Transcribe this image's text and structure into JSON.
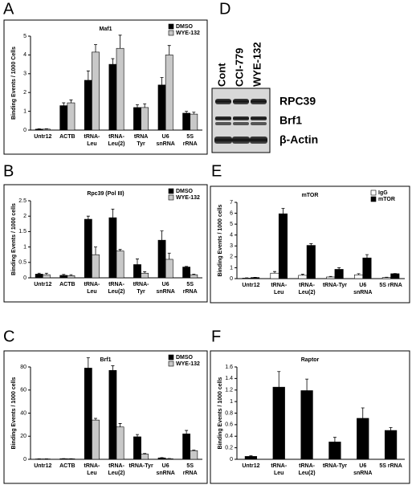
{
  "chart_data": [
    {
      "type": "bar",
      "panel": "A",
      "title": "Maf1",
      "ylabel": "Binding Events / 1000 Cells",
      "categories": [
        [
          "Untr12"
        ],
        [
          "ACTB"
        ],
        [
          "tRNA-",
          "Leu"
        ],
        [
          "tRNA-",
          "Leu(2)"
        ],
        [
          "tRNA",
          "Tyr"
        ],
        [
          "U6",
          "snRNA"
        ],
        [
          "5S",
          "rRNA"
        ]
      ],
      "series": [
        {
          "name": "DMSO",
          "color": "#000000",
          "values": [
            0.05,
            1.3,
            2.65,
            3.5,
            1.2,
            2.4,
            0.9
          ],
          "errors": [
            0.02,
            0.15,
            0.5,
            0.3,
            0.15,
            0.4,
            0.1
          ]
        },
        {
          "name": "WYE-132",
          "color": "#c8c8c8",
          "values": [
            0.05,
            1.45,
            4.15,
            4.35,
            1.2,
            4.0,
            0.85
          ],
          "errors": [
            0.02,
            0.15,
            0.4,
            0.7,
            0.2,
            0.5,
            0.1
          ]
        }
      ],
      "ylim": [
        0,
        5
      ],
      "yticks": [
        0,
        1,
        2,
        3,
        4,
        5
      ]
    },
    {
      "type": "bar",
      "panel": "B",
      "title": "Rpc39 (Pol III)",
      "ylabel": "Binding Events / 1000 cells",
      "categories": [
        [
          "Untr12"
        ],
        [
          "ACTB"
        ],
        [
          "tRNA-",
          "Leu"
        ],
        [
          "tRNA-",
          "Leu(2)"
        ],
        [
          "tRNA-",
          "Tyr"
        ],
        [
          "U6",
          "snRNA"
        ],
        [
          "5S",
          "rRNA"
        ]
      ],
      "series": [
        {
          "name": "DMSO",
          "color": "#000000",
          "values": [
            0.12,
            0.08,
            1.9,
            1.95,
            0.43,
            1.22,
            0.35
          ],
          "errors": [
            0.03,
            0.03,
            0.1,
            0.28,
            0.18,
            0.3,
            0.02
          ]
        },
        {
          "name": "WYE-132",
          "color": "#c8c8c8",
          "values": [
            0.1,
            0.07,
            0.75,
            0.87,
            0.15,
            0.6,
            0.1
          ],
          "errors": [
            0.05,
            0.03,
            0.25,
            0.05,
            0.05,
            0.2,
            0.02
          ]
        }
      ],
      "ylim": [
        0,
        2.5
      ],
      "yticks": [
        0,
        0.5,
        1,
        1.5,
        2,
        2.5
      ]
    },
    {
      "type": "bar",
      "panel": "C",
      "title": "Brf1",
      "ylabel": "Binding Events / 1000 cells",
      "categories": [
        [
          "Untr12"
        ],
        [
          "ACTB"
        ],
        [
          "tRNA-",
          "Leu"
        ],
        [
          "tRNA-",
          "Leu(2)"
        ],
        [
          "tRNA-Tyr"
        ],
        [
          "U6",
          "snRNA"
        ],
        [
          "5S",
          "rRNA"
        ]
      ],
      "series": [
        {
          "name": "DMSO",
          "color": "#000000",
          "values": [
            0.3,
            0.5,
            79,
            77,
            19.5,
            1.2,
            22
          ],
          "errors": [
            0.1,
            0.1,
            9,
            4,
            2,
            0.3,
            3
          ]
        },
        {
          "name": "WYE-132",
          "color": "#c8c8c8",
          "values": [
            0.3,
            0.4,
            34,
            28,
            4.5,
            0.5,
            7.5
          ],
          "errors": [
            0.1,
            0.1,
            1.5,
            3,
            0.5,
            0.2,
            0.5
          ]
        }
      ],
      "ylim": [
        0,
        80
      ],
      "yticks": [
        0,
        20,
        40,
        60,
        80
      ]
    },
    {
      "type": "bar",
      "panel": "E",
      "title": "mTOR",
      "ylabel": "Binding Events / 1000 cells",
      "categories": [
        [
          "Untr12"
        ],
        [
          "tRNA-",
          "Leu"
        ],
        [
          "tRNA-",
          "Leu(2)"
        ],
        [
          "tRNA-Tyr"
        ],
        [
          "U6",
          "snRNA"
        ],
        [
          "5S rRNA"
        ]
      ],
      "series": [
        {
          "name": "IgG",
          "color": "#ffffff",
          "values": [
            0.05,
            0.5,
            0.3,
            0.15,
            0.35,
            0.1
          ],
          "errors": [
            0.02,
            0.15,
            0.1,
            0.05,
            0.1,
            0.03
          ]
        },
        {
          "name": "mTOR",
          "color": "#000000",
          "values": [
            0.1,
            5.95,
            3.05,
            0.85,
            1.9,
            0.45
          ],
          "errors": [
            0.02,
            0.5,
            0.15,
            0.15,
            0.3,
            0.02
          ]
        }
      ],
      "ylim": [
        0,
        7
      ],
      "yticks": [
        0,
        1,
        2,
        3,
        4,
        5,
        6,
        7
      ]
    },
    {
      "type": "bar",
      "panel": "F",
      "title": "Raptor",
      "ylabel": "Binding Events / 1000 cells",
      "categories": [
        [
          "Untr12"
        ],
        [
          "tRNA-",
          "Leu"
        ],
        [
          "tRNA-",
          "Leu(2)"
        ],
        [
          "tRNA-Tyr"
        ],
        [
          "U6",
          "snRNA"
        ],
        [
          "5S rRNA"
        ]
      ],
      "series": [
        {
          "color": "#000000",
          "values": [
            0.05,
            1.25,
            1.19,
            0.3,
            0.71,
            0.5
          ],
          "errors": [
            0.01,
            0.27,
            0.2,
            0.08,
            0.18,
            0.05
          ]
        }
      ],
      "ylim": [
        0,
        1.6
      ],
      "yticks": [
        0,
        0.2,
        0.4,
        0.6,
        0.8,
        1,
        1.2,
        1.4,
        1.6
      ]
    }
  ],
  "blot": {
    "panel": "D",
    "lanes": [
      "Cont",
      "CCI-779",
      "WYE-132"
    ],
    "bands": [
      "RPC39",
      "Brf1",
      "β-Actin"
    ]
  }
}
